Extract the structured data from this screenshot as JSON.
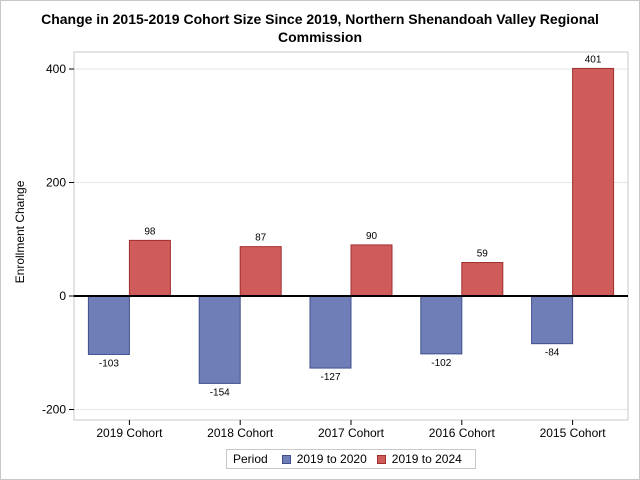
{
  "chart_data": {
    "type": "bar",
    "title": "Change in 2015-2019 Cohort Size Since 2019, Northern Shenandoah Valley Regional Commission",
    "title_lines": [
      "Change in 2015-2019 Cohort Size Since 2019, Northern Shenandoah Valley Regional",
      "Commission"
    ],
    "xlabel": "",
    "ylabel": "Enrollment Change",
    "categories": [
      "2019 Cohort",
      "2018 Cohort",
      "2017 Cohort",
      "2016 Cohort",
      "2015 Cohort"
    ],
    "series": [
      {
        "name": "2019 to 2020",
        "values": [
          -103,
          -154,
          -127,
          -102,
          -84
        ],
        "color": "#6f7eb6",
        "stroke": "#3f4f8f"
      },
      {
        "name": "2019 to 2024",
        "values": [
          98,
          87,
          90,
          59,
          401
        ],
        "color": "#d05b5b",
        "stroke": "#a03030"
      }
    ],
    "ylim": [
      -200,
      400
    ],
    "yticks": [
      -200,
      0,
      200,
      400
    ],
    "grid": true,
    "legend_title": "Period",
    "legend_position": "bottom"
  }
}
